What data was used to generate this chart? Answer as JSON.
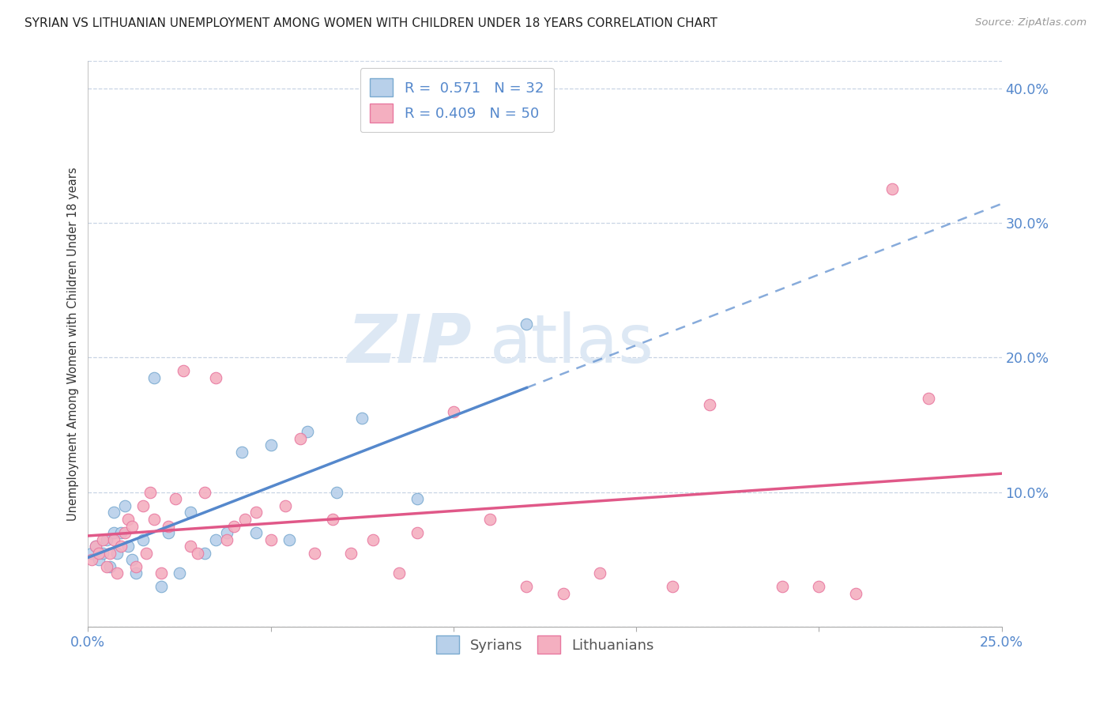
{
  "title": "SYRIAN VS LITHUANIAN UNEMPLOYMENT AMONG WOMEN WITH CHILDREN UNDER 18 YEARS CORRELATION CHART",
  "source": "Source: ZipAtlas.com",
  "ylabel": "Unemployment Among Women with Children Under 18 years",
  "xlabel_syrians": "Syrians",
  "xlabel_lithuanians": "Lithuanians",
  "xmin": 0.0,
  "xmax": 0.25,
  "ymin": 0.0,
  "ymax": 0.42,
  "yticks": [
    0.0,
    0.1,
    0.2,
    0.3,
    0.4
  ],
  "ytick_labels": [
    "",
    "10.0%",
    "20.0%",
    "30.0%",
    "40.0%"
  ],
  "xticks": [
    0.0,
    0.05,
    0.1,
    0.15,
    0.2,
    0.25
  ],
  "xtick_labels": [
    "0.0%",
    "",
    "",
    "",
    "",
    "25.0%"
  ],
  "r_syrian": 0.571,
  "n_syrian": 32,
  "r_lithuanian": 0.409,
  "n_lithuanian": 50,
  "syrian_fill_color": "#b8d0ea",
  "lithuanian_fill_color": "#f4afc0",
  "syrian_edge_color": "#7aaad0",
  "lithuanian_edge_color": "#e878a0",
  "syrian_line_color": "#5588cc",
  "lithuanian_line_color": "#e05888",
  "syrian_scatter_x": [
    0.001,
    0.002,
    0.003,
    0.004,
    0.005,
    0.006,
    0.007,
    0.007,
    0.008,
    0.009,
    0.01,
    0.011,
    0.012,
    0.013,
    0.015,
    0.018,
    0.02,
    0.022,
    0.025,
    0.028,
    0.032,
    0.035,
    0.038,
    0.042,
    0.046,
    0.05,
    0.055,
    0.06,
    0.068,
    0.075,
    0.09,
    0.12
  ],
  "syrian_scatter_y": [
    0.055,
    0.06,
    0.05,
    0.055,
    0.065,
    0.045,
    0.07,
    0.085,
    0.055,
    0.07,
    0.09,
    0.06,
    0.05,
    0.04,
    0.065,
    0.185,
    0.03,
    0.07,
    0.04,
    0.085,
    0.055,
    0.065,
    0.07,
    0.13,
    0.07,
    0.135,
    0.065,
    0.145,
    0.1,
    0.155,
    0.095,
    0.225
  ],
  "lithuanian_scatter_x": [
    0.001,
    0.002,
    0.003,
    0.004,
    0.005,
    0.006,
    0.007,
    0.008,
    0.009,
    0.01,
    0.011,
    0.012,
    0.013,
    0.015,
    0.016,
    0.017,
    0.018,
    0.02,
    0.022,
    0.024,
    0.026,
    0.028,
    0.03,
    0.032,
    0.035,
    0.038,
    0.04,
    0.043,
    0.046,
    0.05,
    0.054,
    0.058,
    0.062,
    0.067,
    0.072,
    0.078,
    0.085,
    0.09,
    0.1,
    0.11,
    0.12,
    0.13,
    0.14,
    0.16,
    0.17,
    0.19,
    0.2,
    0.21,
    0.22,
    0.23
  ],
  "lithuanian_scatter_y": [
    0.05,
    0.06,
    0.055,
    0.065,
    0.045,
    0.055,
    0.065,
    0.04,
    0.06,
    0.07,
    0.08,
    0.075,
    0.045,
    0.09,
    0.055,
    0.1,
    0.08,
    0.04,
    0.075,
    0.095,
    0.19,
    0.06,
    0.055,
    0.1,
    0.185,
    0.065,
    0.075,
    0.08,
    0.085,
    0.065,
    0.09,
    0.14,
    0.055,
    0.08,
    0.055,
    0.065,
    0.04,
    0.07,
    0.16,
    0.08,
    0.03,
    0.025,
    0.04,
    0.03,
    0.165,
    0.03,
    0.03,
    0.025,
    0.325,
    0.17
  ],
  "background_color": "#ffffff",
  "grid_color": "#c8d4e4",
  "watermark_color": "#dde8f4",
  "syrian_line_end": 0.12,
  "lithuanian_line_end": 0.25,
  "legend_text_color": "#5588cc",
  "legend_label_color": "#333333"
}
